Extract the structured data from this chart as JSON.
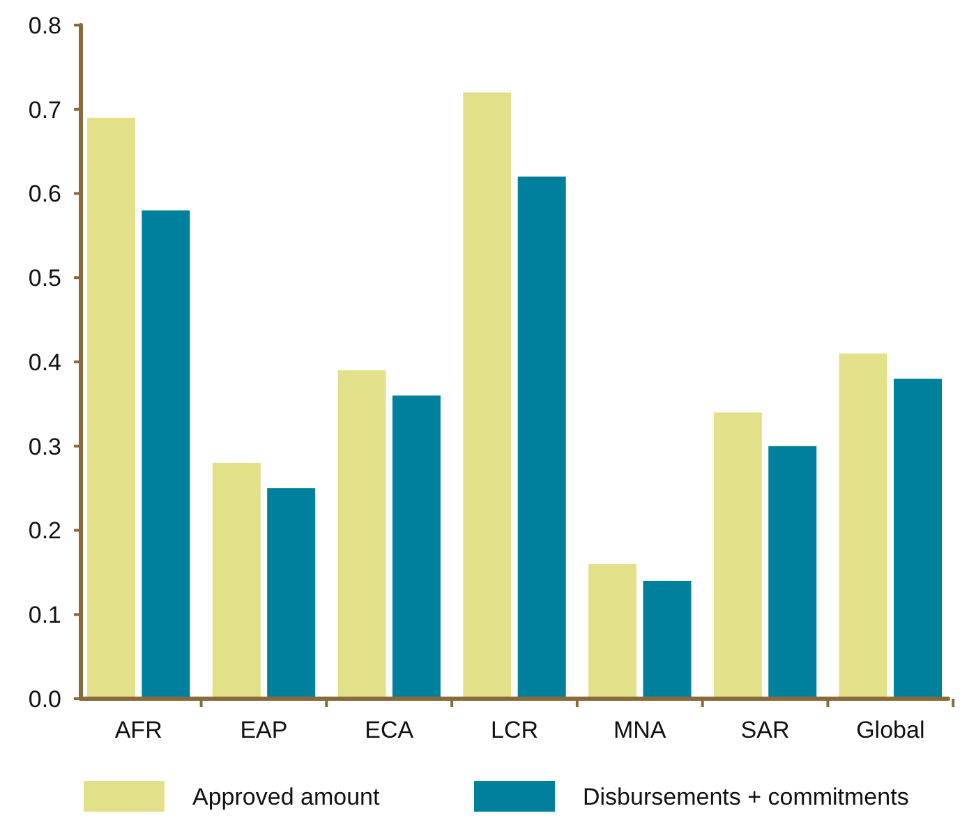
{
  "chart_data": {
    "type": "bar",
    "categories": [
      "AFR",
      "EAP",
      "ECA",
      "LCR",
      "MNA",
      "SAR",
      "Global"
    ],
    "series": [
      {
        "name": "Approved amount",
        "color": "#e3e08a",
        "values": [
          0.69,
          0.28,
          0.39,
          0.72,
          0.16,
          0.34,
          0.41
        ]
      },
      {
        "name": "Disbursements + commitments",
        "color": "#00809c",
        "values": [
          0.58,
          0.25,
          0.36,
          0.62,
          0.14,
          0.3,
          0.38
        ]
      }
    ],
    "ylim": [
      0,
      0.8
    ],
    "yticks": [
      {
        "value": 0,
        "label": "0.0"
      },
      0.1,
      0.2,
      0.3,
      0.4,
      0.5,
      0.6,
      0.7,
      0.8
    ],
    "grid": false,
    "legend": "bottom"
  }
}
